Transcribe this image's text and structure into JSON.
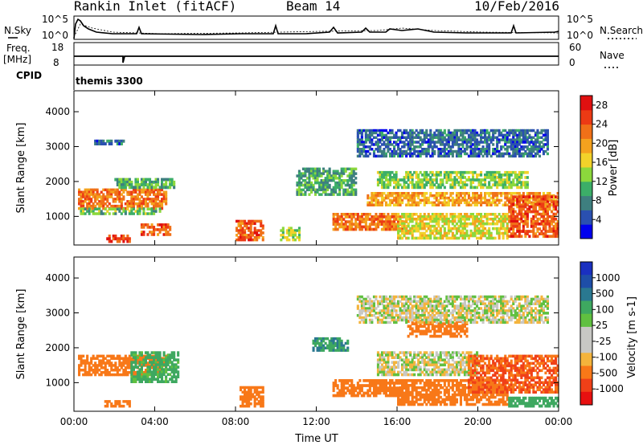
{
  "header": {
    "station": "Rankin Inlet (fitACF)",
    "beam": "Beam 14",
    "date": "10/Feb/2016"
  },
  "aux_panels": {
    "nsky_label": "N.Sky",
    "nsky_ticks": [
      "10^5",
      "10^0"
    ],
    "nsearch_label": "N.Search",
    "nsearch_ticks": [
      "10^5",
      "10^0"
    ],
    "freq_label": "Freq.",
    "freq_unit": "[MHz]",
    "freq_ticks": [
      "18",
      "8"
    ],
    "nave_label": "Nave",
    "nave_ticks": [
      "60",
      "0"
    ],
    "cpid_label": "CPID",
    "cpid_value": "themis 3300"
  },
  "colors": {
    "power_scale": [
      "#0000ee",
      "#2a50b0",
      "#3e7f7f",
      "#3cae68",
      "#8cd83c",
      "#f2d22a",
      "#f4a21e",
      "#f07018",
      "#ec3a14",
      "#e01010"
    ],
    "velocity_scale": [
      "#e81010",
      "#f04018",
      "#f87818",
      "#f4b43c",
      "#c8c8c4",
      "#c8c8c4",
      "#60c040",
      "#3ea860",
      "#2a7890",
      "#1e4ea8",
      "#1a30c0"
    ]
  },
  "chart_data": [
    {
      "type": "heatmap",
      "title": "",
      "xlabel": "Time UT",
      "ylabel": "Slant Range [km]",
      "x_ticks": [
        "00:00",
        "04:00",
        "08:00",
        "12:00",
        "16:00",
        "20:00",
        "00:00"
      ],
      "x_range_hours": [
        0,
        24
      ],
      "y_ticks": [
        "1000",
        "2000",
        "3000",
        "4000"
      ],
      "ylim": [
        180,
        4600
      ],
      "colorbar_label": "Power [dB]",
      "colorbar_ticks": [
        "4",
        "8",
        "12",
        "16",
        "20",
        "24",
        "28"
      ],
      "colorbar_range": [
        0,
        30
      ],
      "features": [
        {
          "t": [
            0.2,
            4.6
          ],
          "r": [
            1200,
            1800
          ],
          "v": 22
        },
        {
          "t": [
            0.3,
            4.3
          ],
          "r": [
            1050,
            1250
          ],
          "v": 12
        },
        {
          "t": [
            2.0,
            5.0
          ],
          "r": [
            1800,
            2100
          ],
          "v": 11
        },
        {
          "t": [
            1.0,
            2.5
          ],
          "r": [
            3050,
            3200
          ],
          "v": 6
        },
        {
          "t": [
            1.5,
            2.8
          ],
          "r": [
            250,
            480
          ],
          "v": 25
        },
        {
          "t": [
            3.3,
            4.8
          ],
          "r": [
            450,
            800
          ],
          "v": 24
        },
        {
          "t": [
            8.0,
            9.4
          ],
          "r": [
            300,
            900
          ],
          "v": 24
        },
        {
          "t": [
            10.2,
            11.2
          ],
          "r": [
            300,
            700
          ],
          "v": 14
        },
        {
          "t": [
            11.0,
            14.0
          ],
          "r": [
            1600,
            2400
          ],
          "v": 10
        },
        {
          "t": [
            12.8,
            16.5
          ],
          "r": [
            600,
            1100
          ],
          "v": 22
        },
        {
          "t": [
            14.5,
            24.0
          ],
          "r": [
            1300,
            1700
          ],
          "v": 20
        },
        {
          "t": [
            15.0,
            22.5
          ],
          "r": [
            1800,
            2300
          ],
          "v": 13
        },
        {
          "t": [
            16.0,
            21.5
          ],
          "r": [
            350,
            1100
          ],
          "v": 16
        },
        {
          "t": [
            21.5,
            24.0
          ],
          "r": [
            400,
            1600
          ],
          "v": 24
        },
        {
          "t": [
            14.0,
            23.5
          ],
          "r": [
            2700,
            3500
          ],
          "v": 6
        }
      ]
    },
    {
      "type": "heatmap",
      "title": "",
      "xlabel": "Time UT",
      "ylabel": "Slant Range [km]",
      "x_ticks": [
        "00:00",
        "04:00",
        "08:00",
        "12:00",
        "16:00",
        "20:00",
        "00:00"
      ],
      "x_range_hours": [
        0,
        24
      ],
      "y_ticks": [
        "1000",
        "2000",
        "3000",
        "4000"
      ],
      "ylim": [
        180,
        4600
      ],
      "colorbar_label": "Velocity [m s-1]",
      "colorbar_ticks": [
        "1000",
        "500",
        "100",
        "25",
        "-25",
        "-100",
        "-500",
        "-1000"
      ],
      "features": [
        {
          "t": [
            0.2,
            4.6
          ],
          "r": [
            1200,
            1800
          ],
          "v": -300
        },
        {
          "t": [
            2.8,
            5.2
          ],
          "r": [
            1000,
            1900
          ],
          "v": 150
        },
        {
          "t": [
            1.5,
            2.8
          ],
          "r": [
            300,
            500
          ],
          "v": -200
        },
        {
          "t": [
            8.2,
            9.4
          ],
          "r": [
            300,
            900
          ],
          "v": -400
        },
        {
          "t": [
            11.8,
            13.6
          ],
          "r": [
            1900,
            2300
          ],
          "v": 500
        },
        {
          "t": [
            12.8,
            16.5
          ],
          "r": [
            600,
            1100
          ],
          "v": -300
        },
        {
          "t": [
            15.0,
            20.0
          ],
          "r": [
            1200,
            1900
          ],
          "v": 0
        },
        {
          "t": [
            16.5,
            19.5
          ],
          "r": [
            2300,
            2800
          ],
          "v": -300
        },
        {
          "t": [
            16.0,
            21.5
          ],
          "r": [
            350,
            1100
          ],
          "v": -300
        },
        {
          "t": [
            19.5,
            24.0
          ],
          "r": [
            700,
            1800
          ],
          "v": -500
        },
        {
          "t": [
            21.5,
            24.0
          ],
          "r": [
            300,
            600
          ],
          "v": 300
        },
        {
          "t": [
            14.0,
            23.5
          ],
          "r": [
            2700,
            3500
          ],
          "v": 0
        }
      ]
    }
  ]
}
